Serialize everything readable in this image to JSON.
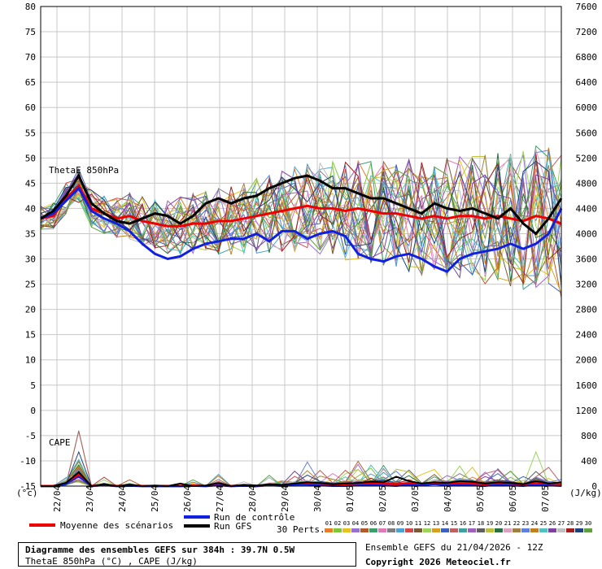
{
  "chart_data": {
    "type": "line",
    "series_names_shown": true,
    "left_axis": {
      "label": "(°c)",
      "range": [
        -15,
        80
      ],
      "ticks": [
        80,
        75,
        70,
        65,
        60,
        55,
        50,
        45,
        40,
        35,
        30,
        25,
        20,
        15,
        10,
        5,
        0,
        -5,
        -10,
        -15
      ]
    },
    "right_axis": {
      "label": "(J/kg)",
      "range": [
        0,
        7600
      ],
      "ticks": [
        7600,
        7200,
        6800,
        6400,
        6000,
        5600,
        5200,
        4800,
        4400,
        4000,
        3600,
        3200,
        2800,
        2400,
        2000,
        1600,
        1200,
        800,
        400,
        0
      ]
    },
    "x_ticks": [
      "22/04",
      "23/04",
      "24/04",
      "25/04",
      "26/04",
      "27/04",
      "28/04",
      "29/04",
      "30/04",
      "01/05",
      "02/05",
      "03/05",
      "04/05",
      "05/05",
      "06/05",
      "07/05"
    ],
    "grid": true,
    "annotations": {
      "thetae": "ThetaE 850hPa",
      "cape": "CAPE"
    },
    "series": [
      {
        "name": "Moyenne des scénarios",
        "color": "#ee0000",
        "values": [
          38,
          38.5,
          42,
          44.5,
          40,
          39,
          38,
          38.5,
          37.5,
          37,
          36.5,
          36.5,
          37,
          37,
          37.5,
          37.5,
          38,
          38.5,
          39,
          39.5,
          40,
          40.5,
          40,
          40,
          39.5,
          40,
          39.5,
          39,
          39,
          38.5,
          38,
          38.5,
          38,
          38.5,
          38.5,
          38,
          38.5,
          38,
          37.5,
          38.5,
          38,
          37
        ]
      },
      {
        "name": "Run de contrôle",
        "color": "#1020e0",
        "values": [
          38,
          39,
          41.5,
          44,
          39.5,
          38,
          37,
          35.5,
          33,
          31,
          30,
          30.5,
          32,
          33,
          33.5,
          34,
          34,
          35,
          33.5,
          35.5,
          35.5,
          34,
          35,
          35.5,
          34.5,
          31,
          30,
          29.5,
          30.5,
          31,
          30,
          28.5,
          27.5,
          30,
          31,
          31.5,
          32,
          33,
          32,
          33,
          35,
          40
        ]
      },
      {
        "name": "Run GFS",
        "color": "#000000",
        "values": [
          38,
          39.5,
          42.5,
          46.5,
          41,
          39,
          37.5,
          37,
          38,
          39,
          38.5,
          37,
          38.5,
          41,
          42,
          41,
          42,
          42.5,
          44,
          45,
          46,
          46.5,
          45.5,
          44,
          44,
          43,
          42,
          42,
          41,
          40,
          39,
          41,
          40,
          39.5,
          40,
          39,
          38,
          40,
          37,
          35,
          38,
          42
        ]
      }
    ],
    "cape_series": [
      {
        "name": "Moyenne des scénarios",
        "values": [
          0,
          0,
          40,
          180,
          0,
          20,
          0,
          10,
          0,
          0,
          0,
          0,
          10,
          0,
          20,
          0,
          10,
          0,
          20,
          10,
          30,
          40,
          30,
          20,
          30,
          40,
          50,
          40,
          30,
          40,
          20,
          40,
          30,
          50,
          40,
          30,
          40,
          30,
          20,
          60,
          30,
          20
        ]
      },
      {
        "name": "Run de contrôle",
        "values": [
          0,
          0,
          30,
          150,
          0,
          10,
          0,
          0,
          0,
          0,
          0,
          0,
          0,
          0,
          10,
          0,
          0,
          0,
          10,
          0,
          20,
          20,
          10,
          0,
          0,
          10,
          20,
          10,
          0,
          20,
          10,
          30,
          10,
          20,
          10,
          0,
          20,
          10,
          0,
          20,
          10,
          0
        ]
      },
      {
        "name": "Run GFS",
        "values": [
          0,
          0,
          50,
          220,
          0,
          30,
          0,
          20,
          0,
          10,
          0,
          40,
          0,
          10,
          50,
          0,
          20,
          10,
          30,
          20,
          40,
          60,
          50,
          30,
          40,
          50,
          70,
          60,
          150,
          80,
          40,
          60,
          50,
          80,
          70,
          40,
          60,
          50,
          30,
          80,
          40,
          60
        ]
      }
    ],
    "ensemble_legend": {
      "label": "30 Perts.",
      "members": [
        "01",
        "02",
        "03",
        "04",
        "05",
        "06",
        "07",
        "08",
        "09",
        "10",
        "11",
        "12",
        "13",
        "14",
        "15",
        "16",
        "17",
        "18",
        "19",
        "20",
        "21",
        "22",
        "23",
        "24",
        "25",
        "26",
        "27",
        "28",
        "29",
        "30"
      ],
      "colors": [
        "#e97b29",
        "#7fc63a",
        "#e8c21f",
        "#9a6fd4",
        "#b35a2c",
        "#3c9e6a",
        "#e07ab8",
        "#7f7f7f",
        "#4aa3d6",
        "#d04a4a",
        "#7a5a3a",
        "#9bd65a",
        "#d8a020",
        "#4060c0",
        "#c06060",
        "#40a0a0",
        "#a060c0",
        "#606060",
        "#c0c040",
        "#2a7040",
        "#e0a0c0",
        "#a08040",
        "#6080e0",
        "#c08020",
        "#50c0c0",
        "#8040a0",
        "#c0c0c0",
        "#a02020",
        "#204080",
        "#60a040"
      ]
    }
  },
  "legend": {
    "mean": "Moyenne des scénarios",
    "control": "Run de contrôle",
    "gfs": "Run GFS"
  },
  "footer": {
    "title": "Diagramme des ensembles GEFS sur 384h : 39.7N 0.5W",
    "subtitle": "ThetaE 850hPa (°C) , CAPE (J/kg)",
    "run": "Ensemble GEFS du 21/04/2026 - 12Z",
    "copyright": "Copyright 2026 Meteociel.fr"
  }
}
